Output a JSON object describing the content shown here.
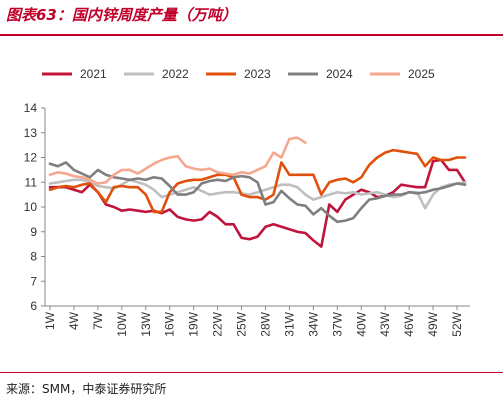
{
  "figure": {
    "title": "图表63：国内锌周度产量（万吨）",
    "source": "来源：SMM，中泰证券研究所"
  },
  "chart_data": {
    "type": "line",
    "title": "",
    "xlabel": "",
    "ylabel": "",
    "ylim": [
      6,
      14
    ],
    "yticks": [
      6,
      7,
      8,
      9,
      10,
      11,
      12,
      13,
      14
    ],
    "xtick_labels": [
      "1W",
      "4W",
      "7W",
      "10W",
      "13W",
      "16W",
      "19W",
      "22W",
      "25W",
      "28W",
      "31W",
      "34W",
      "37W",
      "40W",
      "43W",
      "46W",
      "49W",
      "52W"
    ],
    "legend_position": "top",
    "grid": false,
    "x": [
      1,
      2,
      3,
      4,
      5,
      6,
      7,
      8,
      9,
      10,
      11,
      12,
      13,
      14,
      15,
      16,
      17,
      18,
      19,
      20,
      21,
      22,
      23,
      24,
      25,
      26,
      27,
      28,
      29,
      30,
      31,
      32,
      33,
      34,
      35,
      36,
      37,
      38,
      39,
      40,
      41,
      42,
      43,
      44,
      45,
      46,
      47,
      48,
      49,
      50,
      51,
      52,
      53
    ],
    "series": [
      {
        "name": "2021",
        "color": "#c0143c",
        "values": [
          10.8,
          10.8,
          10.8,
          10.7,
          10.6,
          10.9,
          10.6,
          10.1,
          10.0,
          9.85,
          9.9,
          9.85,
          9.8,
          9.85,
          9.75,
          9.9,
          9.6,
          9.5,
          9.45,
          9.5,
          9.8,
          9.6,
          9.3,
          9.3,
          8.75,
          8.7,
          8.8,
          9.2,
          9.3,
          9.2,
          9.1,
          9.0,
          8.95,
          8.65,
          8.4,
          10.1,
          9.8,
          10.3,
          10.5,
          10.7,
          10.6,
          10.4,
          10.45,
          10.6,
          10.9,
          10.85,
          10.8,
          10.8,
          11.85,
          11.9,
          11.5,
          11.5,
          11.0
        ]
      },
      {
        "name": "2022",
        "color": "#bfbfbf",
        "values": [
          10.95,
          11.0,
          11.05,
          11.1,
          11.1,
          11.0,
          10.85,
          10.8,
          10.75,
          10.9,
          11.1,
          11.0,
          10.9,
          10.7,
          10.4,
          10.5,
          10.6,
          10.7,
          10.8,
          10.65,
          10.5,
          10.55,
          10.6,
          10.6,
          10.55,
          10.5,
          10.6,
          10.7,
          10.8,
          10.9,
          10.9,
          10.8,
          10.5,
          10.3,
          10.4,
          10.5,
          10.6,
          10.55,
          10.6,
          10.5,
          10.55,
          10.6,
          10.5,
          10.4,
          10.45,
          10.6,
          10.6,
          9.95,
          10.5,
          10.8,
          10.9,
          10.95,
          11.0
        ]
      },
      {
        "name": "2023",
        "color": "#e0500a",
        "values": [
          10.7,
          10.8,
          10.85,
          10.8,
          10.9,
          10.95,
          10.6,
          10.2,
          10.8,
          10.85,
          10.8,
          10.8,
          10.5,
          9.8,
          9.8,
          10.6,
          10.95,
          11.05,
          11.1,
          11.1,
          11.2,
          11.3,
          11.3,
          11.2,
          10.5,
          10.4,
          10.4,
          10.3,
          10.5,
          11.8,
          11.3,
          11.3,
          11.3,
          11.3,
          10.5,
          11.0,
          11.1,
          11.15,
          11.0,
          11.2,
          11.7,
          12.0,
          12.2,
          12.3,
          12.25,
          12.2,
          12.15,
          11.65,
          12.0,
          11.9,
          11.9,
          12.0,
          12.0
        ]
      },
      {
        "name": "2024",
        "color": "#7f7f7f",
        "values": [
          11.75,
          11.65,
          11.8,
          11.5,
          11.35,
          11.2,
          11.5,
          11.3,
          11.2,
          11.15,
          11.1,
          11.15,
          11.1,
          11.2,
          11.15,
          10.85,
          10.5,
          10.5,
          10.6,
          10.95,
          11.05,
          11.1,
          11.05,
          11.2,
          11.25,
          11.2,
          11.0,
          10.1,
          10.2,
          10.65,
          10.35,
          10.1,
          10.05,
          9.7,
          9.95,
          9.65,
          9.4,
          9.45,
          9.55,
          9.95,
          10.3,
          10.35,
          10.45,
          10.5,
          10.5,
          10.6,
          10.55,
          10.6,
          10.7,
          10.75,
          10.85,
          10.95,
          10.9
        ]
      },
      {
        "name": "2025",
        "color": "#f4a890",
        "values": [
          11.3,
          11.4,
          11.35,
          11.25,
          11.2,
          11.1,
          10.95,
          11.0,
          11.3,
          11.5,
          11.5,
          11.35,
          11.55,
          11.75,
          11.9,
          12.0,
          12.05,
          11.65,
          11.55,
          11.5,
          11.55,
          11.4,
          11.35,
          11.3,
          11.4,
          11.35,
          11.5,
          11.65,
          12.2,
          12.0,
          12.75,
          12.8,
          12.6,
          null,
          null,
          null,
          null,
          null,
          null,
          null,
          null,
          null,
          null,
          null,
          null,
          null,
          null,
          null,
          null,
          null,
          null,
          null,
          null
        ]
      }
    ]
  }
}
